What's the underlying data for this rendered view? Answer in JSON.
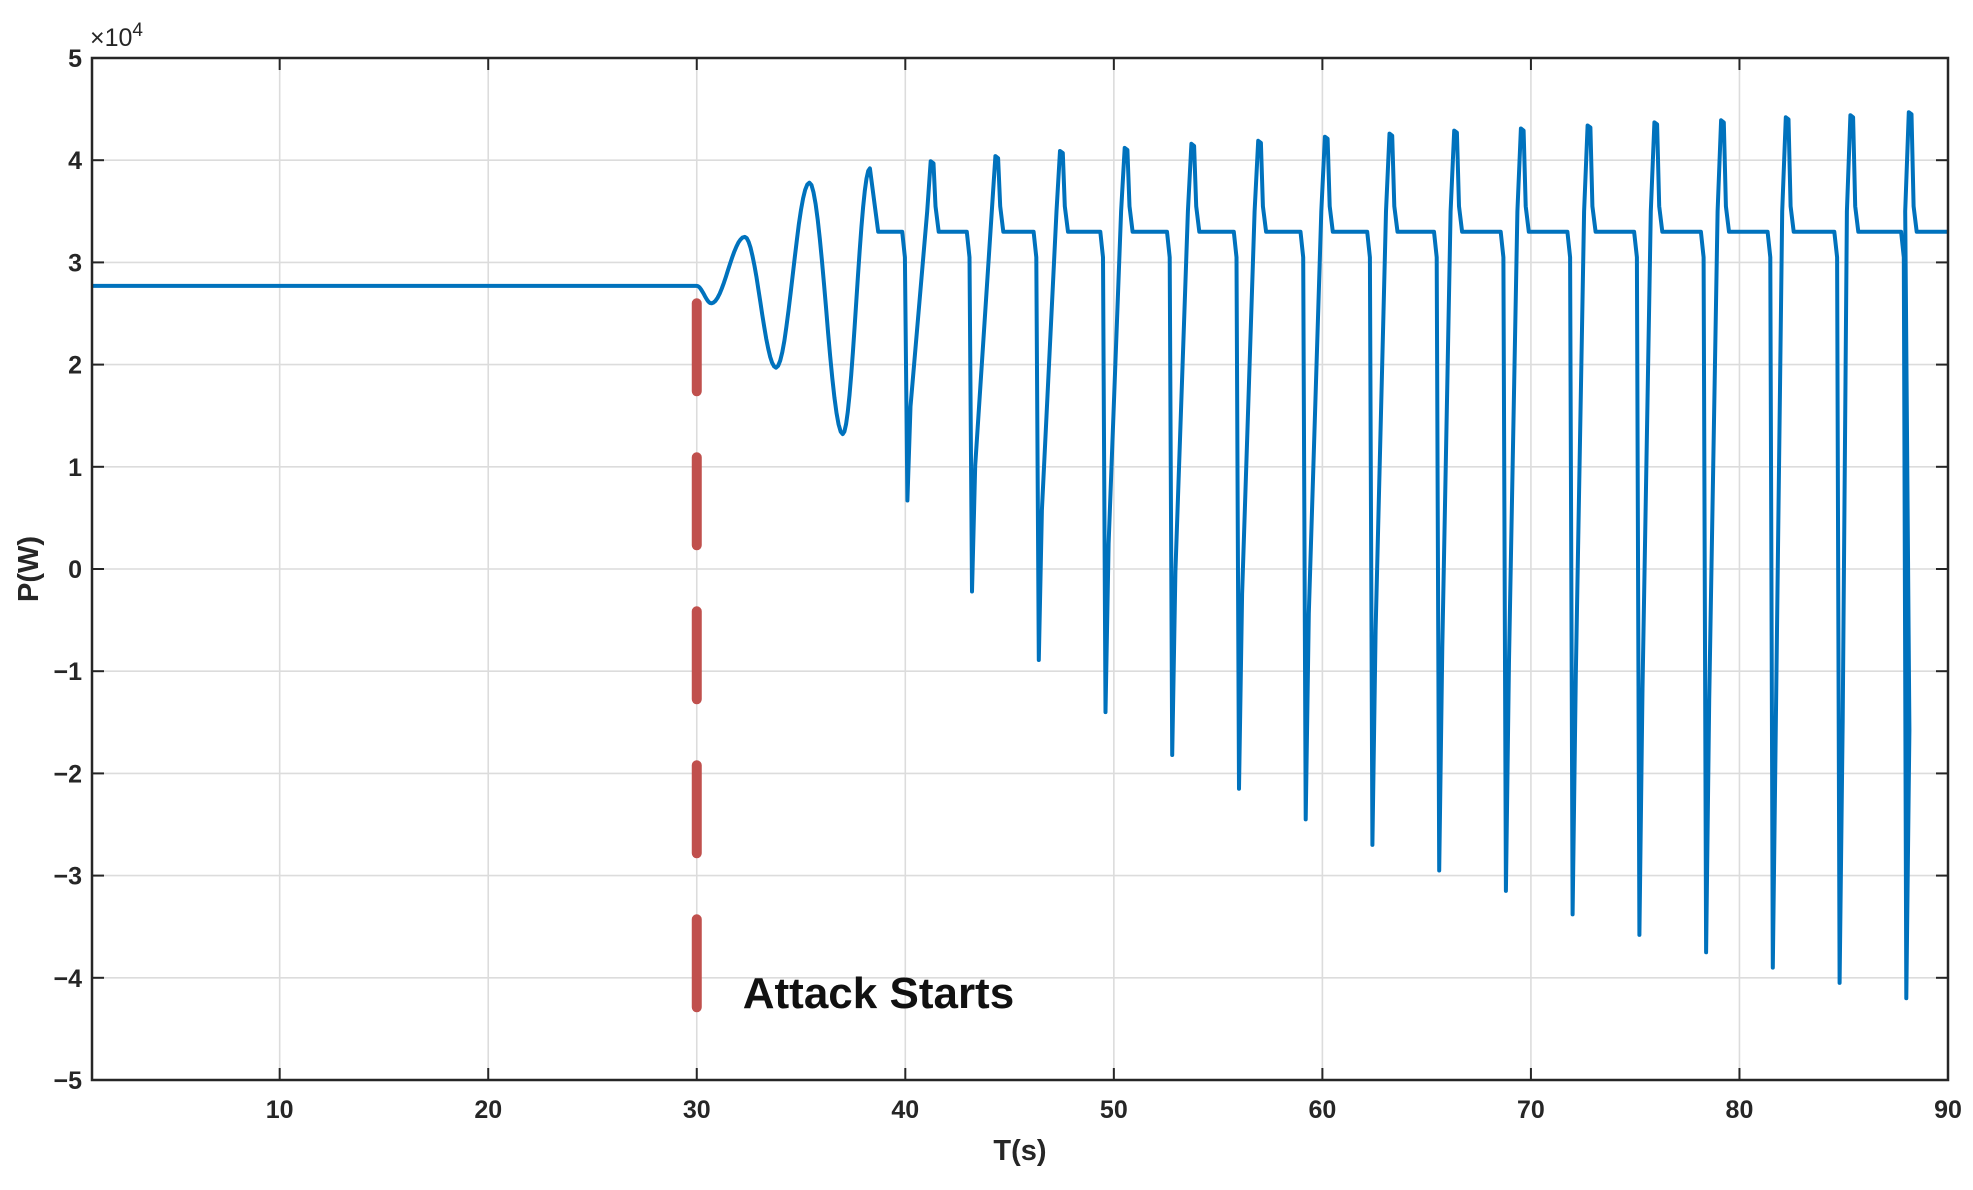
{
  "chart_data": {
    "type": "line",
    "title": "",
    "xlabel": "T(s)",
    "ylabel": "P(W)",
    "xlim": [
      1,
      90
    ],
    "ylim": [
      -50000,
      50000
    ],
    "y_exponent_label": "×10",
    "y_exponent_power": "4",
    "grid": true,
    "x_ticks": [
      10,
      20,
      30,
      40,
      50,
      60,
      70,
      80,
      90
    ],
    "x_tick_labels": [
      "10",
      "20",
      "30",
      "40",
      "50",
      "60",
      "70",
      "80",
      "90"
    ],
    "y_ticks": [
      -50000,
      -40000,
      -30000,
      -20000,
      -10000,
      0,
      10000,
      20000,
      30000,
      40000,
      50000
    ],
    "y_tick_labels": [
      "−5",
      "−4",
      "−3",
      "−2",
      "−1",
      "0",
      "1",
      "2",
      "3",
      "4",
      "5"
    ],
    "line_color": "#0072BD",
    "series": [
      {
        "color": "#0072BD",
        "steady_before_attack": 27700,
        "oscillation_points": [
          {
            "x": 30.0,
            "y": 27700
          },
          {
            "x": 30.7,
            "y": 26000
          },
          {
            "x": 32.3,
            "y": 32500
          },
          {
            "x": 33.8,
            "y": 19700
          },
          {
            "x": 35.4,
            "y": 37800
          },
          {
            "x": 37.0,
            "y": 13200
          },
          {
            "x": 38.3,
            "y": 39200
          }
        ],
        "steady_after_attack": 33000,
        "dips": [
          {
            "x": 40.1,
            "y": 6700
          },
          {
            "x": 43.2,
            "y": -2200
          },
          {
            "x": 46.4,
            "y": -8900
          },
          {
            "x": 49.6,
            "y": -14000
          },
          {
            "x": 52.8,
            "y": -18200
          },
          {
            "x": 56.0,
            "y": -21500
          },
          {
            "x": 59.2,
            "y": -24500
          },
          {
            "x": 62.4,
            "y": -27000
          },
          {
            "x": 65.6,
            "y": -29500
          },
          {
            "x": 68.8,
            "y": -31500
          },
          {
            "x": 72.0,
            "y": -33800
          },
          {
            "x": 75.2,
            "y": -35800
          },
          {
            "x": 78.4,
            "y": -37500
          },
          {
            "x": 81.6,
            "y": -39000
          },
          {
            "x": 84.8,
            "y": -40500
          },
          {
            "x": 88.0,
            "y": -42000
          }
        ],
        "spikes": [
          {
            "x": 41.3,
            "y": 39900
          },
          {
            "x": 44.4,
            "y": 40400
          },
          {
            "x": 47.5,
            "y": 40900
          },
          {
            "x": 50.6,
            "y": 41200
          },
          {
            "x": 53.8,
            "y": 41600
          },
          {
            "x": 57.0,
            "y": 41900
          },
          {
            "x": 60.2,
            "y": 42300
          },
          {
            "x": 63.3,
            "y": 42600
          },
          {
            "x": 66.4,
            "y": 42900
          },
          {
            "x": 69.6,
            "y": 43100
          },
          {
            "x": 72.8,
            "y": 43400
          },
          {
            "x": 76.0,
            "y": 43700
          },
          {
            "x": 79.2,
            "y": 43900
          },
          {
            "x": 82.3,
            "y": 44200
          },
          {
            "x": 85.4,
            "y": 44400
          },
          {
            "x": 88.2,
            "y": 44700
          }
        ]
      }
    ],
    "annotation": {
      "text": "Attack Starts",
      "x": 30,
      "line_color": "#C0504D",
      "line_y_range": [
        -44000,
        26000
      ]
    }
  }
}
